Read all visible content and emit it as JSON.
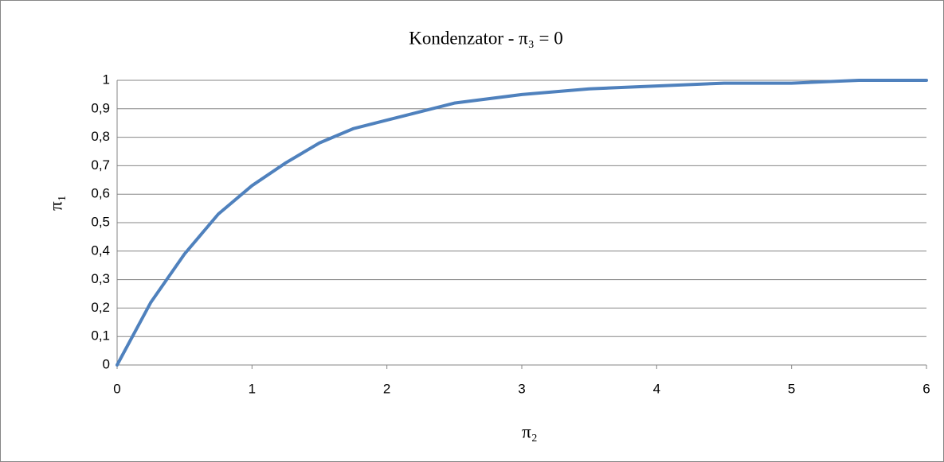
{
  "chart_data": {
    "type": "line",
    "title": "Kondenzator - π₃ = 0",
    "x_label": "π₂",
    "y_label": "π₁",
    "x": [
      0,
      0.25,
      0.5,
      0.75,
      1,
      1.25,
      1.5,
      1.75,
      2,
      2.5,
      3,
      3.5,
      4,
      4.5,
      5,
      5.5,
      6
    ],
    "series": [
      {
        "name": "π₁",
        "color": "#4f81bd",
        "values": [
          0,
          0.22,
          0.39,
          0.53,
          0.63,
          0.71,
          0.78,
          0.83,
          0.86,
          0.92,
          0.95,
          0.97,
          0.98,
          0.99,
          0.99,
          1.0,
          1.0
        ]
      }
    ],
    "xlim": [
      0,
      6
    ],
    "xticks": [
      0,
      1,
      2,
      3,
      4,
      5,
      6
    ],
    "ylim": [
      0,
      1
    ],
    "yticks": [
      0,
      {
        "value": 0.1,
        "label": "0,1"
      },
      {
        "value": 0.2,
        "label": "0,2"
      },
      {
        "value": 0.3,
        "label": "0,3"
      },
      {
        "value": 0.4,
        "label": "0,4"
      },
      {
        "value": 0.5,
        "label": "0,5"
      },
      {
        "value": 0.6,
        "label": "0,6"
      },
      {
        "value": 0.7,
        "label": "0,7"
      },
      {
        "value": 0.8,
        "label": "0,8"
      },
      {
        "value": 0.9,
        "label": "0,9"
      },
      1
    ],
    "grid": true
  }
}
